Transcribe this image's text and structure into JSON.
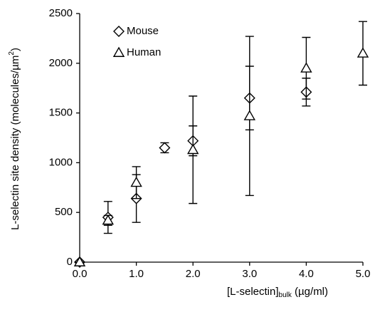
{
  "chart_data": {
    "type": "scatter",
    "ylabel": "L-selectin site density (molecules/µm",
    "ylabel_sup": "2",
    "ylabel_end": ")",
    "xlabel": "[L-selectin]",
    "xlabel_sub": "bulk",
    "xlabel_end": " (µg/ml)",
    "xlim": [
      0,
      5
    ],
    "ylim": [
      0,
      2500
    ],
    "xticks": [
      {
        "value": 0,
        "label": "0.0"
      },
      {
        "value": 1,
        "label": "1.0"
      },
      {
        "value": 2,
        "label": "2.0"
      },
      {
        "value": 3,
        "label": "3.0"
      },
      {
        "value": 4,
        "label": "4.0"
      },
      {
        "value": 5,
        "label": "5.0"
      }
    ],
    "yticks": [
      0,
      500,
      1000,
      1500,
      2000,
      2500
    ],
    "grid": false,
    "legend": "upper left",
    "series": [
      {
        "name": "Mouse",
        "marker": "diamond",
        "color": "#000000",
        "x": [
          0,
          0.5,
          1,
          1.5,
          2,
          3,
          4
        ],
        "values": [
          0,
          450,
          640,
          1150,
          1220,
          1650,
          1710
        ],
        "errors": [
          0,
          160,
          240,
          50,
          150,
          320,
          140
        ]
      },
      {
        "name": "Human",
        "marker": "triangle",
        "color": "#000000",
        "x": [
          0,
          0.5,
          1,
          2,
          3,
          4,
          5
        ],
        "values": [
          0,
          420,
          800,
          1130,
          1470,
          1950,
          2100
        ],
        "errors": [
          0,
          50,
          160,
          540,
          800,
          310,
          320
        ]
      }
    ]
  }
}
